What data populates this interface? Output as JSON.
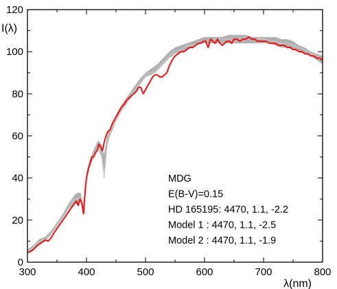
{
  "chart_data": {
    "type": "line",
    "title": "",
    "xlabel": "λ(nm)",
    "ylabel": "I(λ)",
    "xlim": [
      300,
      800
    ],
    "ylim": [
      0,
      120
    ],
    "xticks": [
      300,
      400,
      500,
      600,
      700,
      800
    ],
    "yticks": [
      0,
      20,
      40,
      60,
      80,
      100,
      120
    ],
    "grid": false,
    "legend_position": "bottom-right",
    "annotations": [
      "MDG",
      "E(B-V)=0.15",
      "HD 165195: 4470, 1.1, -2.2",
      "Model 1     : 4470, 1.1, -2.5",
      "Model 2     : 4470, 1.1, -1.9"
    ],
    "series": [
      {
        "name": "",
        "color": "#b0b0b0",
        "style": "band",
        "x": [
          300,
          310,
          320,
          330,
          340,
          350,
          360,
          370,
          380,
          385,
          390,
          395,
          400,
          405,
          410,
          420,
          425,
          430,
          435,
          440,
          450,
          460,
          470,
          480,
          490,
          500,
          510,
          520,
          530,
          540,
          550,
          560,
          570,
          580,
          590,
          600,
          610,
          620,
          630,
          640,
          650,
          660,
          670,
          680,
          690,
          700,
          710,
          720,
          730,
          740,
          750,
          760,
          770,
          780,
          790,
          800
        ],
        "lower": [
          4,
          6,
          9,
          10,
          13,
          17,
          21,
          25,
          28,
          27,
          29,
          23,
          40,
          45,
          48,
          54,
          50,
          43,
          55,
          60,
          67,
          72,
          76,
          80,
          84,
          88,
          89,
          91,
          94,
          97,
          99,
          100,
          101,
          102,
          104,
          104,
          104,
          104,
          104,
          104,
          104,
          104,
          104,
          104,
          104,
          104,
          104,
          103,
          102,
          102,
          101,
          100,
          99,
          98,
          96,
          94
        ],
        "upper": [
          6,
          8,
          11,
          12,
          15,
          19,
          23,
          28,
          32,
          33,
          33,
          27,
          43,
          48,
          52,
          58,
          56,
          51,
          60,
          64,
          70,
          75,
          79,
          83,
          87,
          90,
          92,
          94,
          97,
          100,
          102,
          103,
          104,
          105,
          106,
          107,
          107,
          107,
          107,
          108,
          108,
          108,
          108,
          107,
          107,
          107,
          107,
          107,
          106,
          106,
          105,
          103,
          102,
          100,
          99,
          98
        ]
      },
      {
        "name": "",
        "color": "#c8c8c8",
        "style": "line",
        "x": [
          300,
          310,
          320,
          330,
          340,
          350,
          360,
          370,
          380,
          385,
          390,
          395,
          400,
          405,
          410,
          420,
          425,
          430,
          435,
          440,
          450,
          460,
          470,
          480,
          490,
          500,
          510,
          520,
          530,
          540,
          550,
          560,
          570,
          580,
          590,
          600,
          610,
          620,
          630,
          640,
          650,
          660,
          670,
          680,
          690,
          700,
          710,
          720,
          730,
          740,
          750,
          760,
          770,
          780,
          790,
          800
        ],
        "y": [
          5,
          7,
          10,
          11,
          14,
          18,
          22,
          26,
          30,
          30,
          31,
          25,
          41,
          46,
          50,
          55,
          52,
          40,
          56,
          62,
          68,
          73,
          77,
          81,
          85,
          89,
          90,
          92,
          95,
          98,
          100,
          101,
          103,
          103,
          104,
          105,
          105,
          106,
          106,
          106,
          106,
          106,
          106,
          106,
          106,
          106,
          105,
          105,
          104,
          104,
          103,
          102,
          101,
          99,
          98,
          96
        ]
      },
      {
        "name": "",
        "color": "#ee1111",
        "style": "line",
        "x": [
          300,
          305,
          310,
          315,
          320,
          325,
          330,
          335,
          340,
          345,
          350,
          355,
          360,
          365,
          370,
          375,
          380,
          383,
          386,
          389,
          392,
          395,
          398,
          400,
          403,
          406,
          409,
          412,
          415,
          418,
          421,
          424,
          427,
          430,
          433,
          436,
          440,
          444,
          448,
          452,
          456,
          460,
          464,
          468,
          472,
          476,
          480,
          484,
          488,
          492,
          496,
          500,
          504,
          508,
          512,
          516,
          520,
          524,
          528,
          532,
          536,
          540,
          545,
          550,
          555,
          560,
          565,
          570,
          575,
          580,
          585,
          590,
          594,
          598,
          602,
          606,
          610,
          614,
          618,
          622,
          626,
          630,
          634,
          638,
          642,
          646,
          650,
          655,
          660,
          665,
          670,
          675,
          680,
          685,
          690,
          695,
          700,
          705,
          710,
          715,
          720,
          725,
          730,
          735,
          740,
          745,
          750,
          755,
          760,
          765,
          770,
          775,
          780,
          785,
          790,
          795,
          800
        ],
        "y": [
          4.5,
          5,
          6,
          7.5,
          8.5,
          9.5,
          10.5,
          10,
          11.5,
          14,
          16,
          18,
          20,
          22,
          24,
          26,
          28,
          29,
          27,
          30,
          28,
          23,
          35,
          40,
          44,
          47,
          50,
          50,
          52,
          53,
          56,
          55,
          53,
          57,
          60,
          62,
          63,
          66,
          68,
          70,
          72,
          74,
          75,
          77,
          78,
          79,
          80,
          81,
          83,
          83,
          80,
          82,
          84,
          86,
          88,
          89,
          89,
          88,
          88,
          89,
          90,
          93,
          96,
          98,
          99,
          100,
          100,
          101,
          102,
          102,
          103,
          104,
          104,
          105,
          105,
          102,
          106,
          105,
          104,
          106,
          104,
          103,
          104,
          105,
          105,
          104,
          106,
          106,
          105,
          106,
          106,
          107,
          106,
          106,
          105,
          105,
          105,
          105,
          104,
          104,
          104,
          103,
          103,
          103,
          102,
          102,
          101,
          101,
          100,
          100,
          99,
          99,
          98,
          98,
          97,
          97,
          96
        ]
      }
    ]
  }
}
